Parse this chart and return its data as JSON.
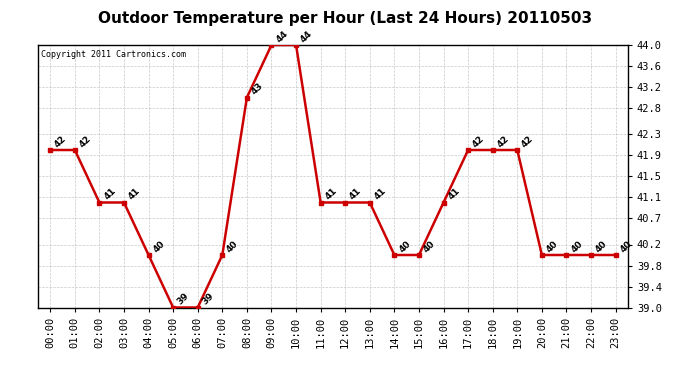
{
  "title": "Outdoor Temperature per Hour (Last 24 Hours) 20110503",
  "copyright_text": "Copyright 2011 Cartronics.com",
  "hours": [
    "00:00",
    "01:00",
    "02:00",
    "03:00",
    "04:00",
    "05:00",
    "06:00",
    "07:00",
    "08:00",
    "09:00",
    "10:00",
    "11:00",
    "12:00",
    "13:00",
    "14:00",
    "15:00",
    "16:00",
    "17:00",
    "18:00",
    "19:00",
    "20:00",
    "21:00",
    "22:00",
    "23:00"
  ],
  "temperatures": [
    42,
    42,
    41,
    41,
    40,
    39,
    39,
    40,
    43,
    44,
    44,
    41,
    41,
    41,
    40,
    40,
    41,
    42,
    42,
    42,
    40,
    40,
    40,
    40
  ],
  "ylim_min": 39.0,
  "ylim_max": 44.0,
  "yticks": [
    39.0,
    39.4,
    39.8,
    40.2,
    40.7,
    41.1,
    41.5,
    41.9,
    42.3,
    42.8,
    43.2,
    43.6,
    44.0
  ],
  "ytick_labels": [
    "39.0",
    "39.4",
    "39.8",
    "40.2",
    "40.7",
    "41.1",
    "41.5",
    "41.9",
    "42.3",
    "42.8",
    "43.2",
    "43.6",
    "44.0"
  ],
  "line_color": "#cc0000",
  "marker": "s",
  "marker_color": "#cc0000",
  "marker_size": 3,
  "line_width": 1.8,
  "bg_color": "#ffffff",
  "grid_color": "#bbbbbb",
  "title_fontsize": 11,
  "label_fontsize": 7.5,
  "annotation_fontsize": 6.5,
  "copyright_fontsize": 6
}
